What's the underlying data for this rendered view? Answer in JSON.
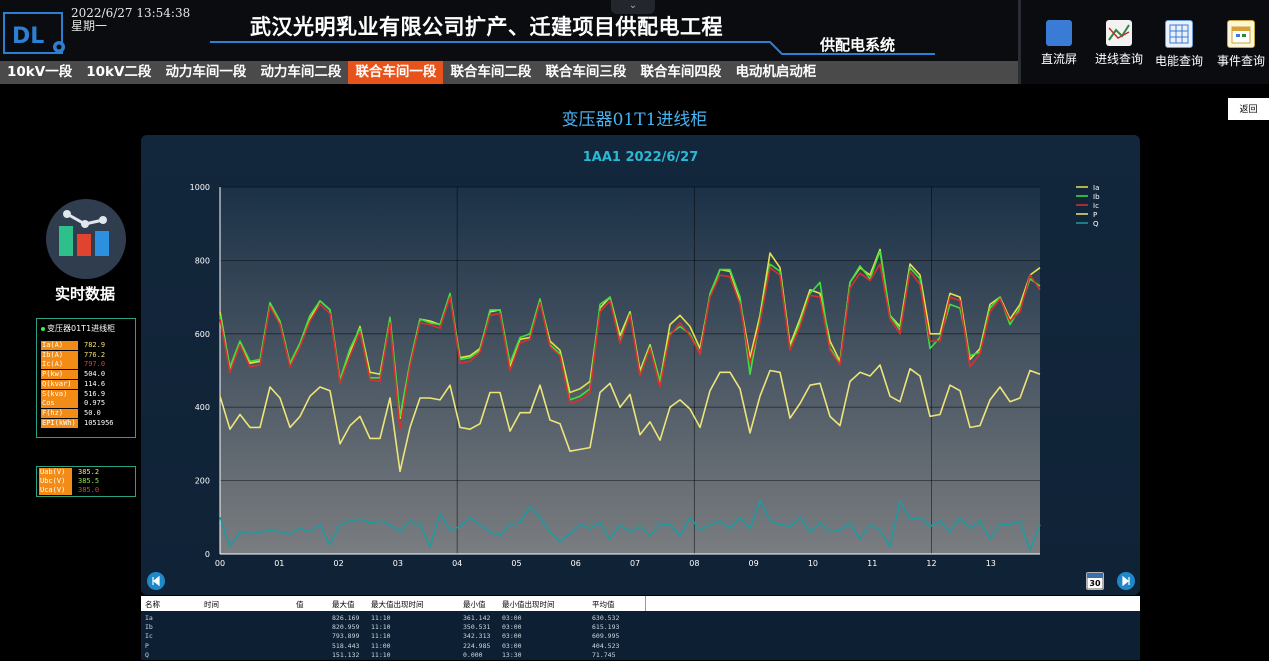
{
  "header": {
    "datetime": "2022/6/27 13:54:38",
    "weekday": "星期一",
    "title": "武汉光明乳业有限公司扩产、迁建项目供配电工程",
    "subtitle": "供配电系统",
    "collapse_icon": "chevron-down-icon"
  },
  "toolbar": [
    {
      "label": "直流屏",
      "icon": "battery-icon"
    },
    {
      "label": "进线查询",
      "icon": "trend-icon"
    },
    {
      "label": "电能查询",
      "icon": "grid-icon"
    },
    {
      "label": "事件查询",
      "icon": "calendar-icon"
    }
  ],
  "nav": [
    {
      "label": "10kV一段",
      "active": false
    },
    {
      "label": "10kV二段",
      "active": false
    },
    {
      "label": "动力车间一段",
      "active": false
    },
    {
      "label": "动力车间二段",
      "active": false
    },
    {
      "label": "联合车间一段",
      "active": true
    },
    {
      "label": "联合车间二段",
      "active": false
    },
    {
      "label": "联合车间三段",
      "active": false
    },
    {
      "label": "联合车间四段",
      "active": false
    },
    {
      "label": "电动机启动柜",
      "active": false
    }
  ],
  "back_label": "返回",
  "page_title": "变压器01T1进线柜",
  "realtime": {
    "label": "实时数据",
    "box_title": "变压器01T1进线柜",
    "rows": [
      {
        "k": "Ia(A)",
        "v": "782.9",
        "color": "#f2e36a"
      },
      {
        "k": "Ib(A)",
        "v": "776.2",
        "color": "#f2e36a"
      },
      {
        "k": "Ic(A)",
        "v": "797.0",
        "color": "#e0403a"
      },
      {
        "k": "P(kw)",
        "v": "504.0",
        "color": "#ffffff"
      },
      {
        "k": "Q(kvar)",
        "v": "114.6",
        "color": "#ffffff"
      },
      {
        "k": "S(kva)",
        "v": "516.9",
        "color": "#ffffff"
      },
      {
        "k": "Cos",
        "v": "0.975",
        "color": "#ffffff"
      },
      {
        "k": "F(hz)",
        "v": "50.0",
        "color": "#ffffff"
      },
      {
        "k": "EPI(kWh)",
        "v": "1051956",
        "color": "#ffffff"
      }
    ],
    "voltages": [
      {
        "k": "Uab(V)",
        "v": "385.2",
        "color": "#f2e36a"
      },
      {
        "k": "Ubc(V)",
        "v": "385.5",
        "color": "#8fe34a"
      },
      {
        "k": "Uca(V)",
        "v": "385.0",
        "color": "#e0403a"
      }
    ]
  },
  "calendar_badge": "30",
  "table": {
    "headers": [
      "名称",
      "时间",
      "值",
      "最大值",
      "最大值出现时间",
      "最小值",
      "最小值出现时间",
      "平均值"
    ],
    "rows": [
      [
        "Ia",
        "",
        "",
        "826.169",
        "11:10",
        "361.142",
        "03:00",
        "630.532"
      ],
      [
        "Ib",
        "",
        "",
        "820.959",
        "11:10",
        "350.531",
        "03:00",
        "615.193"
      ],
      [
        "Ic",
        "",
        "",
        "793.899",
        "11:10",
        "342.313",
        "03:00",
        "609.995"
      ],
      [
        "P",
        "",
        "",
        "518.443",
        "11:00",
        "224.985",
        "03:00",
        "404.523"
      ],
      [
        "Q",
        "",
        "",
        "151.132",
        "11:10",
        "0.000",
        "13:30",
        "71.745"
      ]
    ]
  },
  "chart_data": {
    "type": "line",
    "title": "1AA1 2022/6/27",
    "xlabel": "",
    "ylabel": "",
    "ylim": [
      0,
      1000
    ],
    "yticks": [
      0,
      200,
      400,
      600,
      800,
      1000
    ],
    "xticks": [
      "00",
      "01",
      "02",
      "03",
      "04",
      "05",
      "06",
      "07",
      "08",
      "09",
      "10",
      "11",
      "12",
      "13"
    ],
    "x_range_hours": [
      0,
      13.83
    ],
    "grid": true,
    "legend_position": "top-right",
    "series": [
      {
        "name": "Ia",
        "color": "#e6e24a",
        "values": [
          660,
          505,
          575,
          520,
          525,
          680,
          630,
          515,
          570,
          640,
          690,
          665,
          470,
          550,
          620,
          495,
          490,
          640,
          370,
          520,
          640,
          635,
          625,
          705,
          535,
          540,
          560,
          660,
          665,
          510,
          585,
          590,
          690,
          580,
          555,
          440,
          450,
          470,
          670,
          700,
          595,
          660,
          500,
          570,
          470,
          625,
          650,
          620,
          560,
          705,
          775,
          770,
          690,
          535,
          650,
          820,
          780,
          570,
          640,
          720,
          710,
          580,
          525,
          740,
          780,
          760,
          830,
          650,
          620,
          790,
          760,
          600,
          600,
          710,
          700,
          530,
          560,
          680,
          700,
          640,
          680,
          760,
          780
        ]
      },
      {
        "name": "Ib",
        "color": "#3ee03e",
        "values": [
          650,
          510,
          580,
          525,
          530,
          685,
          635,
          520,
          575,
          650,
          690,
          665,
          475,
          560,
          615,
          480,
          480,
          645,
          375,
          520,
          640,
          630,
          625,
          710,
          530,
          535,
          555,
          665,
          665,
          520,
          590,
          600,
          695,
          570,
          545,
          420,
          430,
          450,
          680,
          700,
          580,
          655,
          490,
          565,
          470,
          600,
          620,
          600,
          545,
          710,
          775,
          775,
          700,
          490,
          640,
          790,
          770,
          560,
          630,
          710,
          740,
          560,
          520,
          740,
          785,
          750,
          825,
          650,
          610,
          780,
          750,
          560,
          590,
          680,
          670,
          540,
          550,
          670,
          700,
          625,
          670,
          750,
          730
        ]
      },
      {
        "name": "Ic",
        "color": "#d83030",
        "values": [
          640,
          495,
          570,
          510,
          515,
          675,
          625,
          510,
          565,
          635,
          680,
          655,
          465,
          540,
          605,
          475,
          470,
          630,
          340,
          510,
          630,
          625,
          615,
          700,
          520,
          525,
          550,
          650,
          655,
          500,
          575,
          585,
          685,
          565,
          540,
          410,
          420,
          440,
          660,
          690,
          575,
          650,
          485,
          560,
          455,
          595,
          630,
          595,
          545,
          700,
          760,
          755,
          680,
          520,
          630,
          780,
          760,
          555,
          620,
          705,
          700,
          555,
          515,
          725,
          765,
          745,
          790,
          640,
          600,
          770,
          735,
          580,
          580,
          700,
          690,
          510,
          545,
          660,
          695,
          635,
          660,
          760,
          720
        ]
      },
      {
        "name": "P",
        "color": "#ede57a",
        "values": [
          430,
          340,
          380,
          345,
          345,
          455,
          425,
          345,
          375,
          430,
          455,
          445,
          300,
          350,
          375,
          315,
          315,
          425,
          225,
          345,
          425,
          425,
          420,
          460,
          345,
          340,
          355,
          440,
          440,
          335,
          385,
          385,
          460,
          365,
          355,
          280,
          285,
          290,
          440,
          465,
          400,
          435,
          325,
          360,
          310,
          400,
          420,
          395,
          345,
          445,
          495,
          495,
          450,
          330,
          430,
          500,
          495,
          370,
          410,
          460,
          465,
          375,
          350,
          470,
          495,
          485,
          515,
          430,
          415,
          505,
          485,
          375,
          380,
          460,
          445,
          345,
          350,
          420,
          455,
          415,
          425,
          500,
          490
        ]
      },
      {
        "name": "Q",
        "color": "#1e9aa0",
        "values": [
          100,
          20,
          60,
          55,
          60,
          65,
          60,
          55,
          70,
          60,
          80,
          25,
          80,
          90,
          95,
          85,
          90,
          80,
          60,
          90,
          80,
          20,
          110,
          65,
          75,
          100,
          80,
          60,
          50,
          80,
          85,
          130,
          100,
          60,
          35,
          55,
          80,
          70,
          85,
          40,
          80,
          60,
          75,
          50,
          80,
          80,
          50,
          100,
          65,
          80,
          90,
          70,
          100,
          70,
          145,
          90,
          80,
          75,
          100,
          60,
          85,
          60,
          65,
          85,
          40,
          80,
          65,
          20,
          145,
          95,
          100,
          75,
          90,
          60,
          100,
          70,
          90,
          40,
          80,
          80,
          90,
          10,
          80
        ]
      }
    ]
  }
}
